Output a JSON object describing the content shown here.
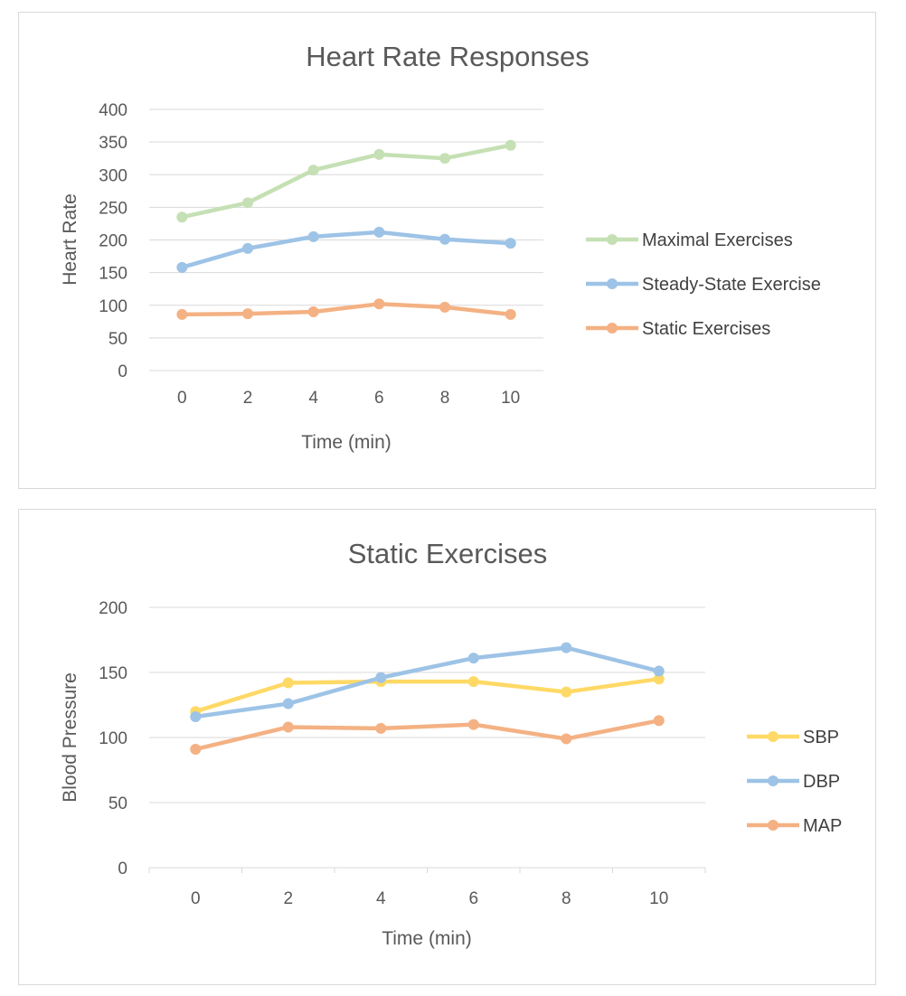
{
  "chart_data": [
    {
      "type": "line",
      "title": "Heart Rate Responses",
      "xlabel": "Time (min)",
      "ylabel": "Heart Rate",
      "categories": [
        "0",
        "2",
        "4",
        "6",
        "8",
        "10"
      ],
      "ylim": [
        0,
        400
      ],
      "yticks": [
        0,
        50,
        100,
        150,
        200,
        250,
        300,
        350,
        400
      ],
      "grid": true,
      "legend": "right",
      "series": [
        {
          "name": "Maximal Exercises",
          "color": "#c5e0b4",
          "values": [
            235,
            257,
            307,
            331,
            325,
            345
          ]
        },
        {
          "name": "Steady-State Exercise",
          "color": "#9dc3e6",
          "values": [
            158,
            187,
            205,
            212,
            201,
            195
          ]
        },
        {
          "name": "Static Exercises",
          "color": "#f4b183",
          "values": [
            86,
            87,
            90,
            102,
            97,
            86
          ]
        }
      ]
    },
    {
      "type": "line",
      "title": "Static Exercises",
      "xlabel": "Time (min)",
      "ylabel": "Blood Pressure",
      "categories": [
        "0",
        "2",
        "4",
        "6",
        "8",
        "10"
      ],
      "ylim": [
        0,
        200
      ],
      "yticks": [
        0,
        50,
        100,
        150,
        200
      ],
      "grid": true,
      "legend": "right",
      "series": [
        {
          "name": "SBP",
          "color": "#ffd966",
          "values": [
            120,
            142,
            143,
            143,
            135,
            145
          ]
        },
        {
          "name": "DBP",
          "color": "#9dc3e6",
          "values": [
            116,
            126,
            146,
            161,
            169,
            151
          ]
        },
        {
          "name": "MAP",
          "color": "#f4b183",
          "values": [
            91,
            108,
            107,
            110,
            99,
            113
          ]
        }
      ]
    }
  ]
}
